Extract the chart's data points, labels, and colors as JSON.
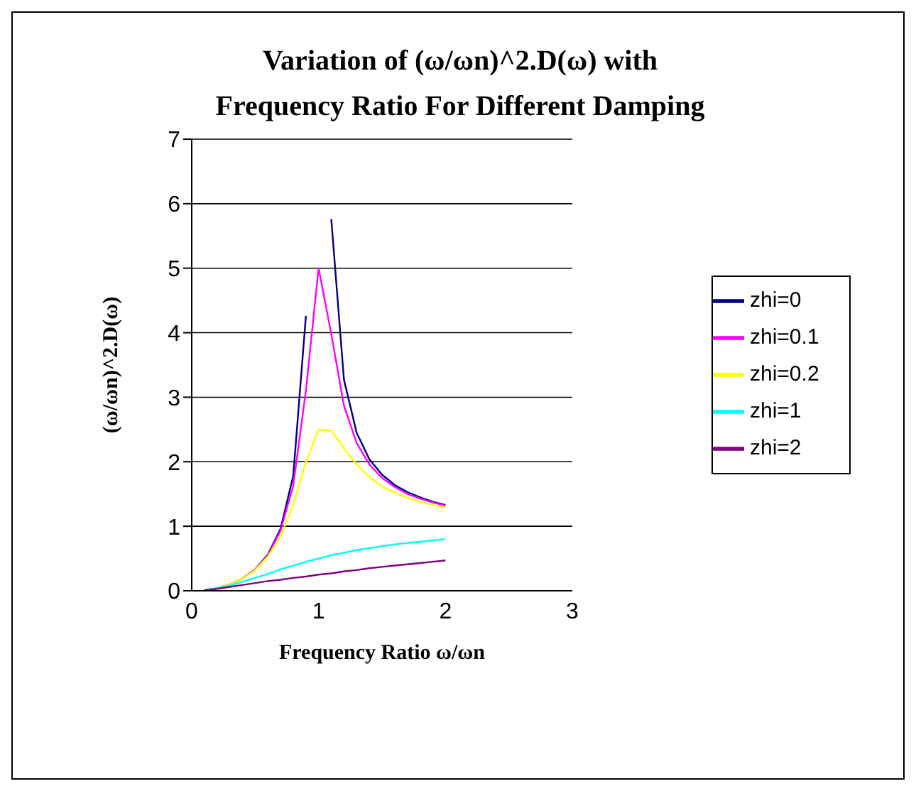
{
  "chart_data": {
    "type": "line",
    "title": "Variation of (ω/ωn)^2.D(ω) with Frequency Ratio For Different Damping",
    "xlabel": "Frequency Ratio ω/ωn",
    "ylabel": "(ω/ωn)^2.D(ω)",
    "x": [
      0.1,
      0.2,
      0.3,
      0.4,
      0.5,
      0.6,
      0.7,
      0.8,
      0.9,
      1.0,
      1.1,
      1.2,
      1.3,
      1.4,
      1.5,
      1.6,
      1.7,
      1.8,
      1.9,
      2.0
    ],
    "series": [
      {
        "name": "zhi=0",
        "color": "#000080",
        "values": [
          0.01,
          0.04,
          0.1,
          0.19,
          0.33,
          0.56,
          0.96,
          1.78,
          4.26,
          null,
          5.76,
          3.27,
          2.45,
          2.04,
          1.8,
          1.64,
          1.53,
          1.45,
          1.38,
          1.33
        ]
      },
      {
        "name": "zhi=0.1",
        "color": "#ff00ff",
        "values": [
          null,
          null,
          null,
          0.19,
          0.33,
          0.55,
          0.93,
          1.63,
          3.1,
          5,
          3.98,
          2.87,
          2.29,
          1.96,
          1.75,
          1.61,
          1.5,
          1.43,
          1.37,
          1.32
        ]
      },
      {
        "name": "zhi=0.2",
        "color": "#ffff00",
        "values": [
          0.01,
          0.04,
          0.1,
          0.19,
          0.32,
          0.53,
          0.84,
          1.33,
          1.99,
          2.5,
          2.48,
          2.21,
          1.96,
          1.76,
          1.62,
          1.52,
          1.44,
          1.38,
          1.33,
          1.29
        ]
      },
      {
        "name": "zhi=1",
        "color": "#00ffff",
        "values": [
          0.01,
          0.04,
          0.08,
          0.14,
          0.2,
          0.26,
          0.33,
          0.39,
          0.45,
          0.5,
          0.55,
          0.59,
          0.63,
          0.66,
          0.69,
          0.72,
          0.74,
          0.76,
          0.78,
          0.8
        ]
      },
      {
        "name": "zhi=2",
        "color": "#800080",
        "values": [
          0.01,
          0.03,
          0.06,
          0.09,
          0.12,
          0.15,
          0.17,
          0.2,
          0.22,
          0.25,
          0.27,
          0.3,
          0.32,
          0.35,
          0.37,
          0.39,
          0.41,
          0.43,
          0.45,
          0.47
        ]
      }
    ],
    "xlim": [
      0,
      3
    ],
    "xticks": [
      0,
      1,
      2,
      3
    ],
    "ylim": [
      0,
      7
    ],
    "yticks": [
      0,
      1,
      2,
      3,
      4,
      5,
      6,
      7
    ],
    "grid": "y",
    "legend": "right",
    "marker": "none",
    "line_style": "solid"
  }
}
